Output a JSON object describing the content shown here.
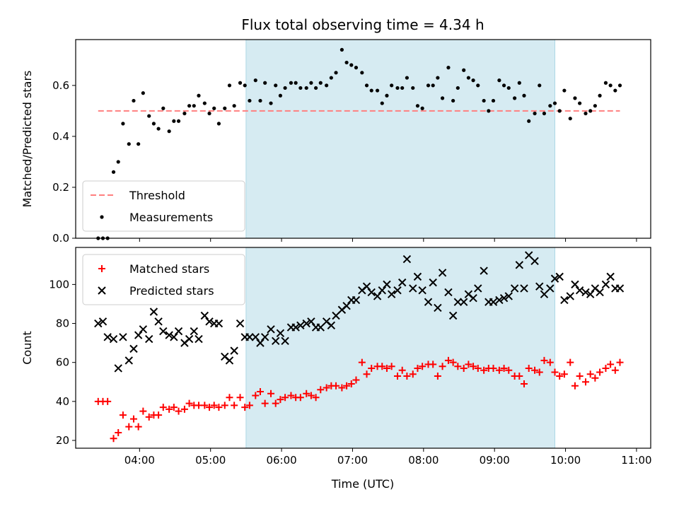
{
  "chart_data": {
    "title": "Flux total observing time = 4.34 h",
    "xlabel": "Time (UTC)",
    "xlim": [
      "03:06",
      "11:12"
    ],
    "xticks": [
      "04:00",
      "05:00",
      "06:00",
      "07:00",
      "08:00",
      "09:00",
      "10:00",
      "11:00"
    ],
    "highlight_band": {
      "start": "05:30",
      "end": "09:51",
      "color": "#add8e6"
    },
    "time": [
      "03:25",
      "03:29",
      "03:33",
      "03:38",
      "03:42",
      "03:46",
      "03:51",
      "03:55",
      "03:59",
      "04:03",
      "04:08",
      "04:12",
      "04:16",
      "04:20",
      "04:25",
      "04:29",
      "04:33",
      "04:38",
      "04:42",
      "04:46",
      "04:50",
      "04:55",
      "04:59",
      "05:03",
      "05:07",
      "05:12",
      "05:16",
      "05:20",
      "05:25",
      "05:29",
      "05:33",
      "05:38",
      "05:42",
      "05:46",
      "05:51",
      "05:55",
      "05:59",
      "06:03",
      "06:08",
      "06:12",
      "06:16",
      "06:21",
      "06:25",
      "06:29",
      "06:33",
      "06:38",
      "06:42",
      "06:46",
      "06:51",
      "06:55",
      "06:59",
      "07:03",
      "07:08",
      "07:12",
      "07:16",
      "07:21",
      "07:25",
      "07:29",
      "07:33",
      "07:38",
      "07:42",
      "07:46",
      "07:51",
      "07:55",
      "07:59",
      "08:04",
      "08:08",
      "08:12",
      "08:16",
      "08:21",
      "08:25",
      "08:29",
      "08:34",
      "08:38",
      "08:42",
      "08:46",
      "08:51",
      "08:55",
      "08:59",
      "09:04",
      "09:08",
      "09:12",
      "09:17",
      "09:21",
      "09:25",
      "09:29",
      "09:34",
      "09:38",
      "09:42",
      "09:47",
      "09:51",
      "09:55",
      "09:59",
      "10:04",
      "10:08",
      "10:12",
      "10:17",
      "10:21",
      "10:25",
      "10:29",
      "10:34",
      "10:38",
      "10:42",
      "10:46"
    ],
    "panels": [
      {
        "ylabel": "Matched/Predicted stars",
        "ylim": [
          0,
          0.78
        ],
        "yticks": [
          "0.0",
          "0.2",
          "0.4",
          "0.6"
        ],
        "legend": "lower-left",
        "series": [
          {
            "name": "Threshold",
            "type": "line",
            "style": "dashed",
            "color": "#ff7f7f",
            "x": [
              "03:25",
              "10:46"
            ],
            "values": [
              0.5,
              0.5
            ]
          },
          {
            "name": "Measurements",
            "type": "scatter",
            "marker": "dot",
            "color": "#000000",
            "values": [
              0.0,
              0.0,
              0.0,
              0.26,
              0.3,
              0.45,
              0.37,
              0.54,
              0.37,
              0.57,
              0.48,
              0.45,
              0.43,
              0.51,
              0.42,
              0.46,
              0.46,
              0.49,
              0.52,
              0.52,
              0.56,
              0.53,
              0.49,
              0.51,
              0.45,
              0.51,
              0.6,
              0.52,
              0.61,
              0.6,
              0.54,
              0.62,
              0.54,
              0.61,
              0.53,
              0.6,
              0.56,
              0.59,
              0.61,
              0.61,
              0.59,
              0.59,
              0.61,
              0.59,
              0.61,
              0.6,
              0.63,
              0.65,
              0.74,
              0.69,
              0.68,
              0.67,
              0.65,
              0.6,
              0.58,
              0.58,
              0.53,
              0.56,
              0.6,
              0.59,
              0.59,
              0.63,
              0.59,
              0.52,
              0.51,
              0.6,
              0.6,
              0.63,
              0.55,
              0.67,
              0.54,
              0.59,
              0.66,
              0.63,
              0.62,
              0.6,
              0.54,
              0.5,
              0.54,
              0.62,
              0.6,
              0.59,
              0.55,
              0.61,
              0.56,
              0.46,
              0.49,
              0.6,
              0.49,
              0.52,
              0.53,
              0.5,
              0.58,
              0.47,
              0.55,
              0.53,
              0.49,
              0.5,
              0.52,
              0.56,
              0.61,
              0.6,
              0.58,
              0.6
            ]
          }
        ]
      },
      {
        "ylabel": "Count",
        "ylim": [
          16,
          119
        ],
        "yticks": [
          "20",
          "40",
          "60",
          "80",
          "100"
        ],
        "legend": "upper-left",
        "series": [
          {
            "name": "Matched stars",
            "type": "scatter",
            "marker": "plus",
            "color": "#ff0000",
            "values": [
              40,
              40,
              40,
              21,
              24,
              33,
              27,
              31,
              27,
              35,
              32,
              33,
              33,
              37,
              36,
              37,
              35,
              36,
              39,
              38,
              38,
              38,
              37,
              38,
              37,
              38,
              42,
              38,
              42,
              37,
              38,
              43,
              45,
              39,
              44,
              39,
              41,
              42,
              43,
              42,
              42,
              44,
              43,
              42,
              46,
              47,
              48,
              48,
              47,
              48,
              49,
              51,
              60,
              54,
              57,
              58,
              58,
              57,
              58,
              53,
              56,
              53,
              54,
              57,
              58,
              59,
              59,
              53,
              58,
              61,
              60,
              58,
              57,
              59,
              58,
              57,
              56,
              57,
              57,
              56,
              57,
              56,
              53,
              53,
              49,
              57,
              56,
              55,
              61,
              60,
              55,
              53,
              54,
              60,
              48,
              53,
              50,
              54,
              52,
              55,
              57,
              59,
              56,
              60
            ]
          },
          {
            "name": "Predicted stars",
            "type": "scatter",
            "marker": "x",
            "color": "#000000",
            "values": [
              80,
              81,
              73,
              72,
              57,
              73,
              61,
              67,
              74,
              77,
              72,
              86,
              81,
              76,
              74,
              73,
              76,
              70,
              72,
              76,
              72,
              84,
              81,
              80,
              80,
              63,
              61,
              66,
              80,
              73,
              73,
              73,
              70,
              73,
              77,
              71,
              75,
              71,
              78,
              78,
              79,
              80,
              81,
              78,
              78,
              81,
              79,
              84,
              87,
              89,
              92,
              92,
              97,
              99,
              96,
              94,
              97,
              100,
              95,
              97,
              101,
              113,
              98,
              104,
              97,
              91,
              101,
              88,
              106,
              96,
              84,
              91,
              91,
              95,
              93,
              98,
              107,
              91,
              91,
              92,
              93,
              94,
              98,
              110,
              98,
              115,
              112,
              99,
              95,
              98,
              103,
              104,
              92,
              94,
              100,
              97,
              96,
              95,
              98,
              96,
              100,
              104,
              98,
              98
            ]
          }
        ]
      }
    ]
  }
}
